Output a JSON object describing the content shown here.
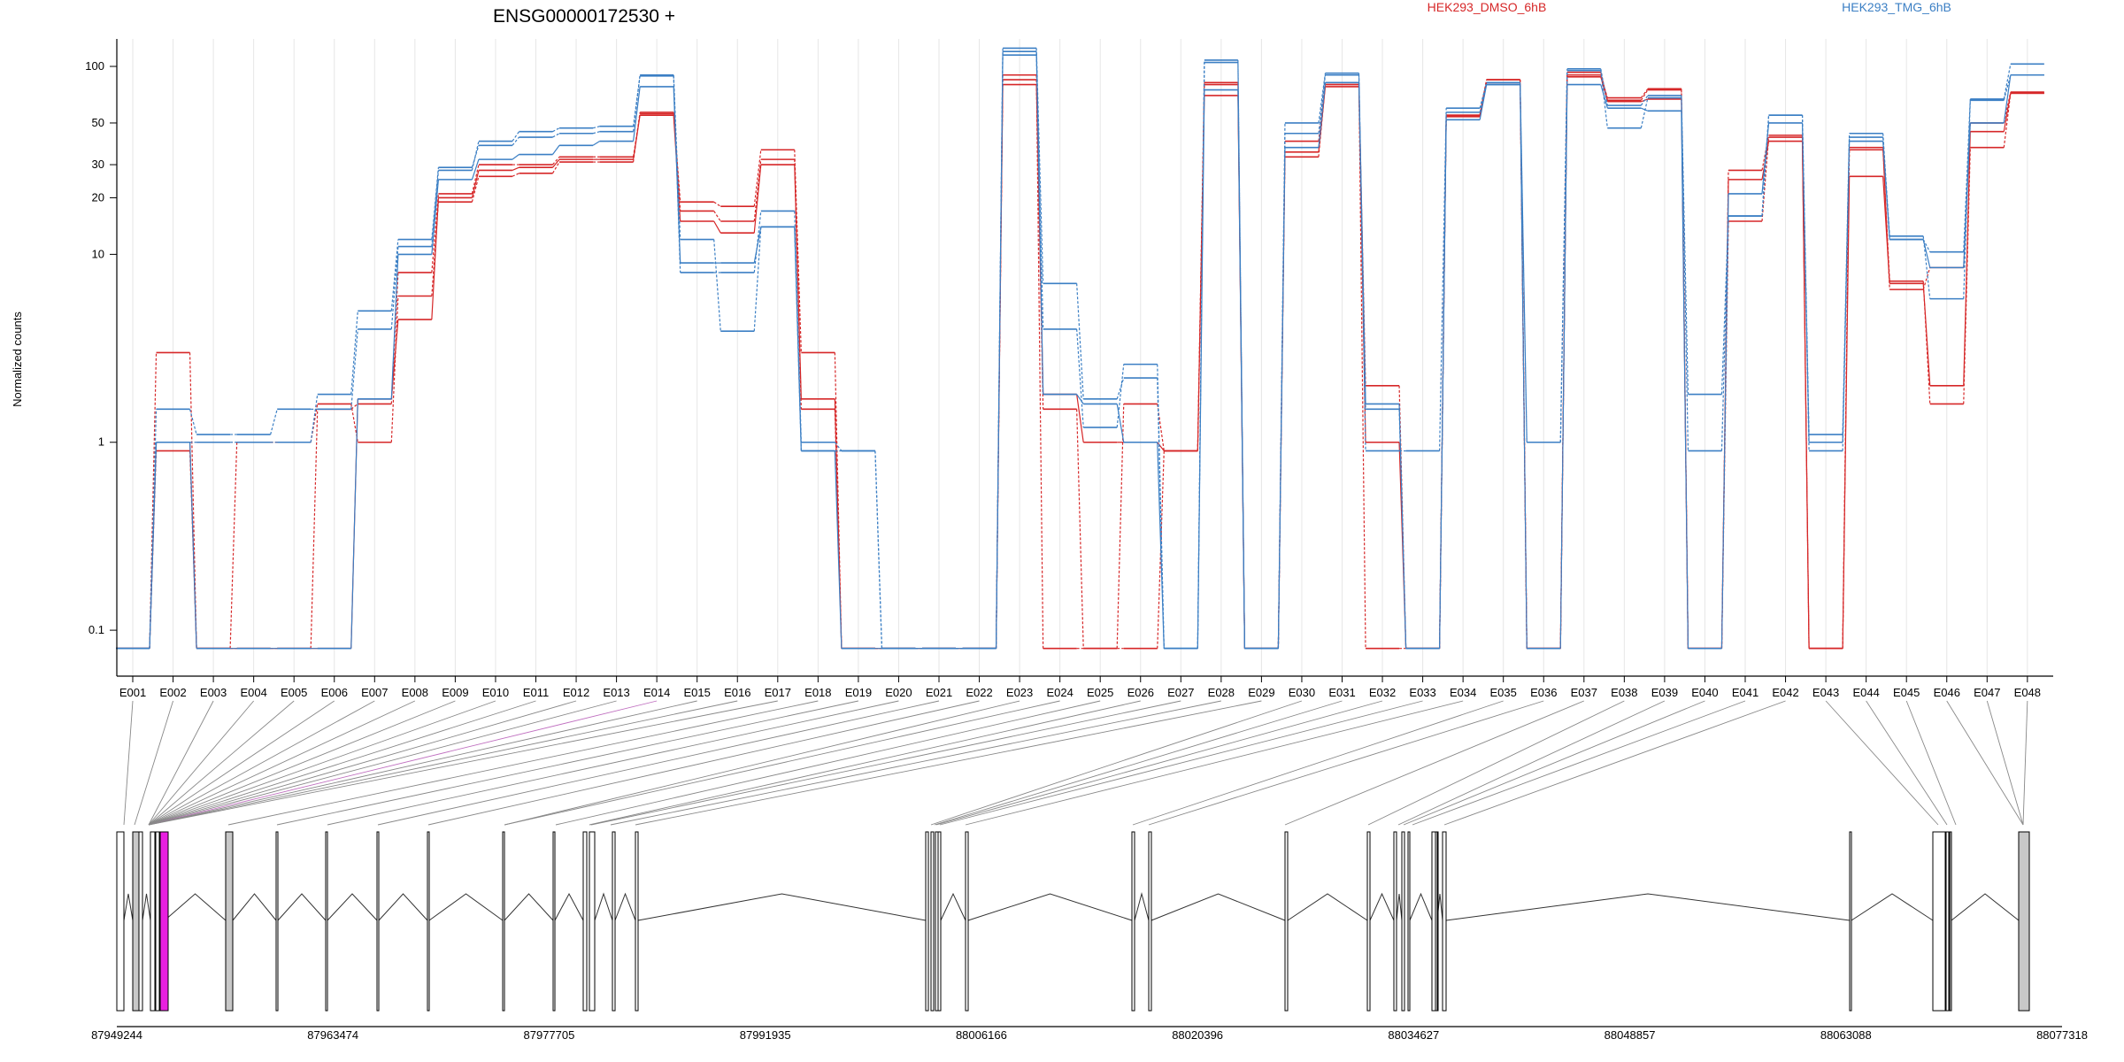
{
  "chart_data": {
    "type": "line",
    "title": "ENSG00000172530 +",
    "ylabel": "Normalized counts",
    "xlabel": "",
    "yscale": "log",
    "ylim": [
      0.07,
      140
    ],
    "yticks": [
      {
        "v": 100,
        "label": "100"
      },
      {
        "v": 50,
        "label": "50"
      },
      {
        "v": 30,
        "label": "30"
      },
      {
        "v": 20,
        "label": "20"
      },
      {
        "v": 10,
        "label": "10"
      },
      {
        "v": 1,
        "label": "1"
      },
      {
        "v": 0.1,
        "label": "0.1"
      }
    ],
    "grid": "vertical",
    "legend": [
      {
        "name": "HEK293_DMSO_6hB",
        "color": "#d62728"
      },
      {
        "name": "HEK293_TMG_6hB",
        "color": "#3b7fc4"
      }
    ],
    "categories": [
      "E001",
      "E002",
      "E003",
      "E004",
      "E005",
      "E006",
      "E007",
      "E008",
      "E009",
      "E010",
      "E011",
      "E012",
      "E013",
      "E014",
      "E015",
      "E016",
      "E017",
      "E018",
      "E019",
      "E020",
      "E021",
      "E022",
      "E023",
      "E024",
      "E025",
      "E026",
      "E027",
      "E028",
      "E029",
      "E030",
      "E031",
      "E032",
      "E033",
      "E034",
      "E035",
      "E036",
      "E037",
      "E038",
      "E039",
      "E040",
      "E041",
      "E042",
      "E043",
      "E044",
      "E045",
      "E046",
      "E047",
      "E048"
    ],
    "series": [
      {
        "group": "HEK293_DMSO_6hB",
        "color": "#d62728",
        "dash": false,
        "values": [
          0.08,
          1,
          0.08,
          0.08,
          0.08,
          0.08,
          1.7,
          4.5,
          20,
          28,
          29,
          32,
          32,
          55,
          15,
          13,
          30,
          1.7,
          0.08,
          0.08,
          0.08,
          0.08,
          80,
          1.8,
          1.0,
          1.0,
          0.9,
          70,
          0.08,
          35,
          78,
          1.0,
          0.08,
          54,
          82,
          0.08,
          88,
          65,
          67,
          0.08,
          25,
          40,
          0.08,
          26,
          7,
          2.0,
          45,
          72
        ]
      },
      {
        "group": "HEK293_DMSO_6hB",
        "color": "#d62728",
        "dash": true,
        "values": [
          0.08,
          3,
          0.08,
          1,
          1,
          1.6,
          1,
          6,
          19,
          26,
          27,
          31,
          31,
          57,
          17,
          15,
          32,
          1.5,
          0.08,
          0.08,
          0.08,
          0.08,
          85,
          1.5,
          0.08,
          1.6,
          0.9,
          80,
          0.08,
          33,
          80,
          2.0,
          0.08,
          55,
          85,
          0.08,
          93,
          66,
          75,
          0.08,
          15,
          42,
          0.08,
          36,
          7.2,
          1.6,
          37,
          72
        ]
      },
      {
        "group": "HEK293_DMSO_6hB",
        "color": "#d62728",
        "dash": true,
        "values": [
          0.08,
          0.9,
          0.08,
          0.08,
          0.08,
          1.5,
          1.6,
          8,
          21,
          30,
          30,
          33,
          33,
          56,
          19,
          18,
          36,
          3,
          0.08,
          0.08,
          0.08,
          0.08,
          90,
          0.08,
          0.08,
          0.08,
          0.9,
          82,
          0.08,
          40,
          82,
          0.08,
          0.08,
          55,
          85,
          0.08,
          90,
          68,
          76,
          0.08,
          28,
          43,
          0.08,
          37,
          6.5,
          8.5,
          50,
          73
        ]
      },
      {
        "group": "HEK293_TMG_6hB",
        "color": "#3b7fc4",
        "dash": false,
        "values": [
          0.08,
          1,
          0.08,
          0.08,
          0.08,
          0.08,
          1.7,
          10,
          25,
          32,
          34,
          38,
          40,
          78,
          9,
          9,
          14,
          0.9,
          0.08,
          0.08,
          0.08,
          0.08,
          120,
          1.8,
          1.6,
          1.0,
          0.08,
          75,
          0.08,
          37,
          82,
          1.6,
          0.08,
          52,
          80,
          0.08,
          80,
          60,
          58,
          0.08,
          21,
          50,
          1.0,
          40,
          12,
          8.5,
          50,
          90
        ]
      },
      {
        "group": "HEK293_TMG_6hB",
        "color": "#3b7fc4",
        "dash": true,
        "values": [
          0.08,
          1.5,
          1.1,
          1.1,
          1.5,
          1.5,
          4,
          11,
          28,
          40,
          45,
          47,
          48,
          89,
          8,
          8,
          17,
          1.0,
          0.9,
          0.08,
          0.08,
          0.08,
          125,
          7,
          1.7,
          2.2,
          0.08,
          108,
          0.08,
          50,
          92,
          1.5,
          0.08,
          57,
          80,
          1.0,
          97,
          62,
          70,
          1.8,
          16,
          55,
          1.1,
          44,
          12,
          10.3,
          67,
          103
        ]
      },
      {
        "group": "HEK293_TMG_6hB",
        "color": "#3b7fc4",
        "dash": true,
        "values": [
          0.08,
          1,
          1,
          1,
          1,
          1.8,
          5,
          12,
          29,
          38,
          42,
          44,
          45,
          90,
          12,
          3.9,
          14,
          0.9,
          0.9,
          0.08,
          0.08,
          0.08,
          115,
          4,
          1.2,
          2.6,
          0.08,
          105,
          0.08,
          44,
          90,
          0.9,
          0.9,
          60,
          82,
          1.0,
          95,
          47,
          68,
          0.9,
          16,
          55,
          0.9,
          42,
          12.5,
          5.8,
          66,
          90
        ]
      }
    ],
    "transcript_ticks": [
      "87949244",
      "87963474",
      "87977705",
      "87991935",
      "88006166",
      "88020396",
      "88034627",
      "88048857",
      "88063088",
      "88077318"
    ],
    "track_range": [
      87949244,
      88077318
    ]
  }
}
